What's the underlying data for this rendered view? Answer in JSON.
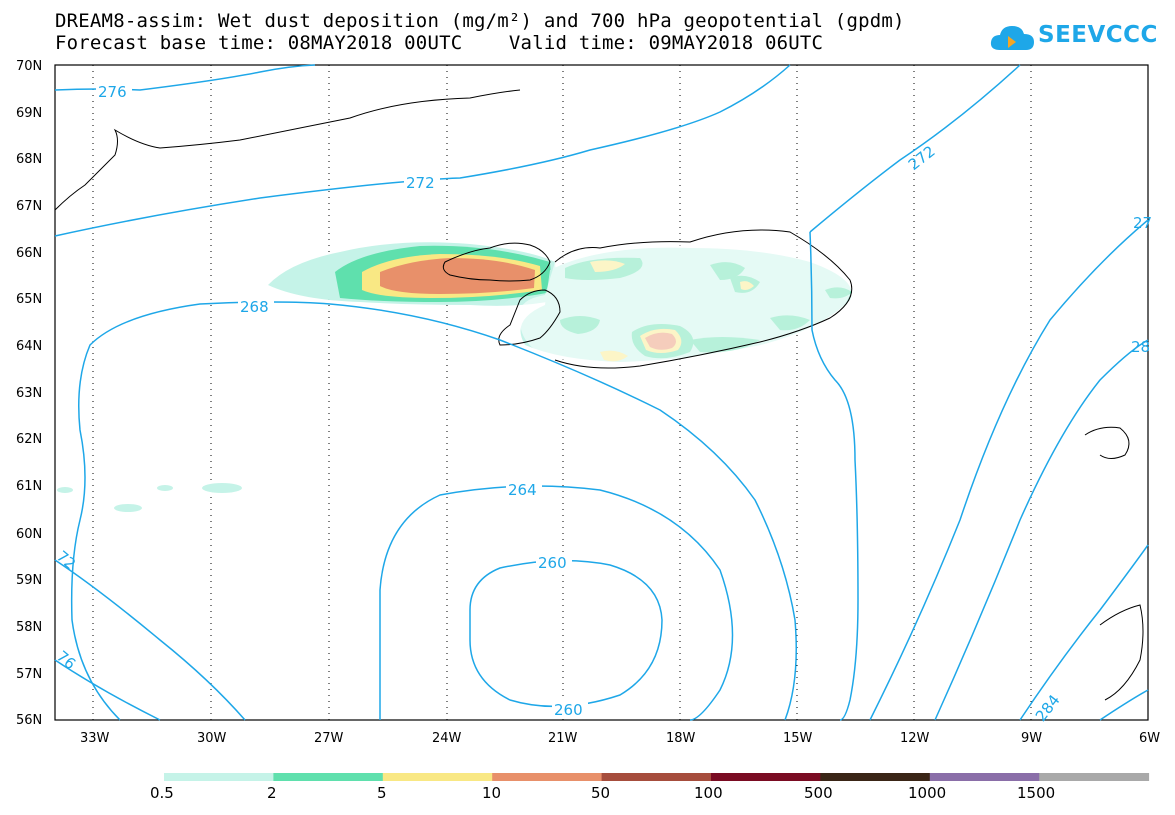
{
  "title": {
    "line1": "DREAM8-assim: Wet dust deposition (mg/m²) and 700 hPa geopotential (gpdm)",
    "line2": "Forecast base time: 08MAY2018 00UTC    Valid time: 09MAY2018 06UTC"
  },
  "logo": {
    "text": "SEEVCCC",
    "icon": "cloud-icon"
  },
  "axes": {
    "lat_labels": [
      "70N",
      "69N",
      "68N",
      "67N",
      "66N",
      "65N",
      "64N",
      "63N",
      "62N",
      "61N",
      "60N",
      "59N",
      "58N",
      "57N",
      "56N"
    ],
    "lon_labels": [
      "33W",
      "30W",
      "27W",
      "24W",
      "21W",
      "18W",
      "15W",
      "12W",
      "9W",
      "6W"
    ]
  },
  "contour_labels": [
    "276",
    "272",
    "272",
    "27",
    "268",
    "28",
    "264",
    "260",
    "260",
    "72",
    "76",
    "284"
  ],
  "legend": {
    "labels": [
      "0.5",
      "2",
      "5",
      "10",
      "50",
      "100",
      "500",
      "1000",
      "1500"
    ],
    "colors": [
      "#c5f3e8",
      "#5fe0ad",
      "#f9e884",
      "#e8906a",
      "#a64d3c",
      "#7a0b22",
      "#3a2516",
      "#8a6ea8",
      "#a9a9a9"
    ]
  },
  "colors": {
    "contour": "#1ea7e8",
    "coast": "#000000"
  }
}
